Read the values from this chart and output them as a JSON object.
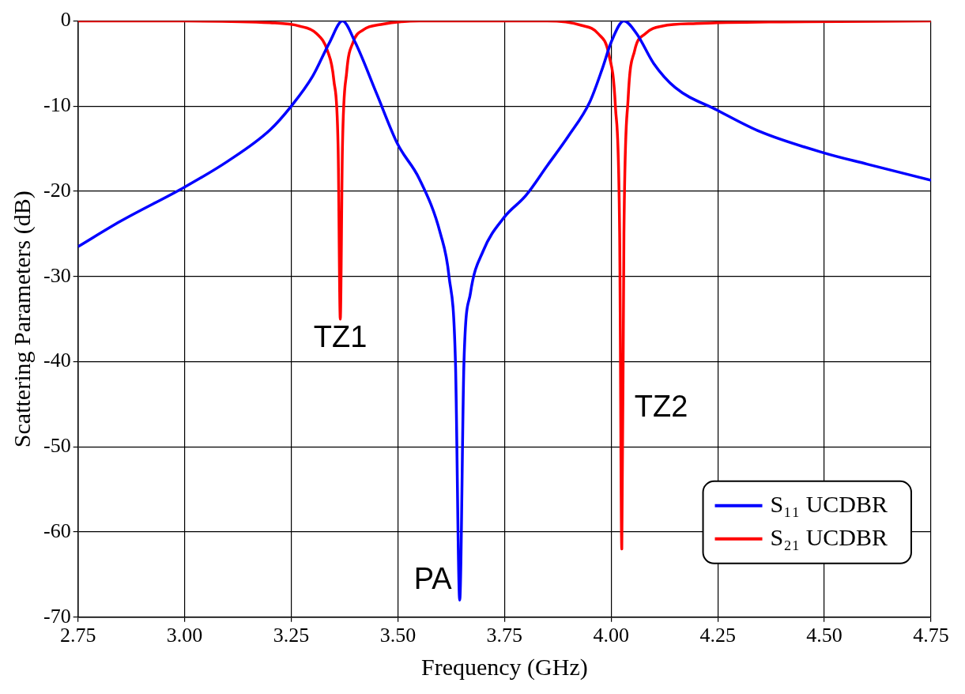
{
  "chart_data": {
    "type": "line",
    "xlabel": "Frequency (GHz)",
    "ylabel": "Scattering Parameters (dB)",
    "xlim": [
      2.75,
      4.75
    ],
    "xticks": [
      2.75,
      {
        "value": 3,
        "label": "3.00"
      },
      3.25,
      {
        "value": 3.5,
        "label": "3.50"
      },
      3.75,
      {
        "value": 4,
        "label": "4.00"
      },
      4.25,
      {
        "value": 4.5,
        "label": "4.50"
      },
      4.75
    ],
    "ylim": [
      -70,
      0
    ],
    "yticks": [
      -70,
      -60,
      -50,
      -40,
      -30,
      -20,
      -10,
      0
    ],
    "grid": true,
    "legend": "bottom right",
    "line_style": "solid",
    "marker": "none",
    "series": [
      {
        "name": "S₁₁ UCDBR",
        "color": "#0000ff",
        "x": [
          2.75,
          2.85,
          3.0,
          3.1,
          3.2,
          3.25,
          3.3,
          3.34,
          3.37,
          3.4,
          3.45,
          3.5,
          3.55,
          3.6,
          3.62,
          3.635,
          3.645,
          3.655,
          3.67,
          3.7,
          3.75,
          3.8,
          3.85,
          3.9,
          3.95,
          3.98,
          4.0,
          4.03,
          4.06,
          4.1,
          4.15,
          4.25,
          4.35,
          4.5,
          4.6,
          4.75
        ],
        "values": [
          -26.5,
          -23.5,
          -19.5,
          -16.5,
          -12.8,
          -10,
          -6.5,
          -2.5,
          0,
          -2.5,
          -8.5,
          -14.5,
          -18.5,
          -25,
          -30,
          -40,
          -68,
          -40,
          -32,
          -27,
          -23,
          -20.5,
          -17,
          -13.5,
          -9.5,
          -5.5,
          -2.5,
          0,
          -1.5,
          -5,
          -7.8,
          -10.5,
          -13,
          -15.5,
          -16.8,
          -18.7
        ]
      },
      {
        "name": "S₂₁ UCDBR",
        "color": "#ff0000",
        "x": [
          2.75,
          3.0,
          3.2,
          3.27,
          3.31,
          3.335,
          3.35,
          3.36,
          3.365,
          3.37,
          3.38,
          3.395,
          3.42,
          3.46,
          3.55,
          3.7,
          3.85,
          3.93,
          3.97,
          3.995,
          4.01,
          4.02,
          4.025,
          4.03,
          4.04,
          4.055,
          4.08,
          4.12,
          4.2,
          4.4,
          4.75
        ],
        "values": [
          0,
          0,
          -0.2,
          -0.6,
          -1.5,
          -3.5,
          -7,
          -15,
          -35,
          -15,
          -6,
          -2.5,
          -1,
          -0.4,
          0,
          0,
          0,
          -0.5,
          -1.5,
          -4,
          -10,
          -25,
          -62,
          -25,
          -9,
          -3.5,
          -1.5,
          -0.6,
          -0.3,
          -0.1,
          0
        ]
      }
    ],
    "annotations": [
      {
        "text": "TZ1",
        "x": 3.365,
        "y": -35
      },
      {
        "text": "PA",
        "x": 3.645,
        "y": -68
      },
      {
        "text": "TZ2",
        "x": 4.025,
        "y": -45
      }
    ]
  }
}
